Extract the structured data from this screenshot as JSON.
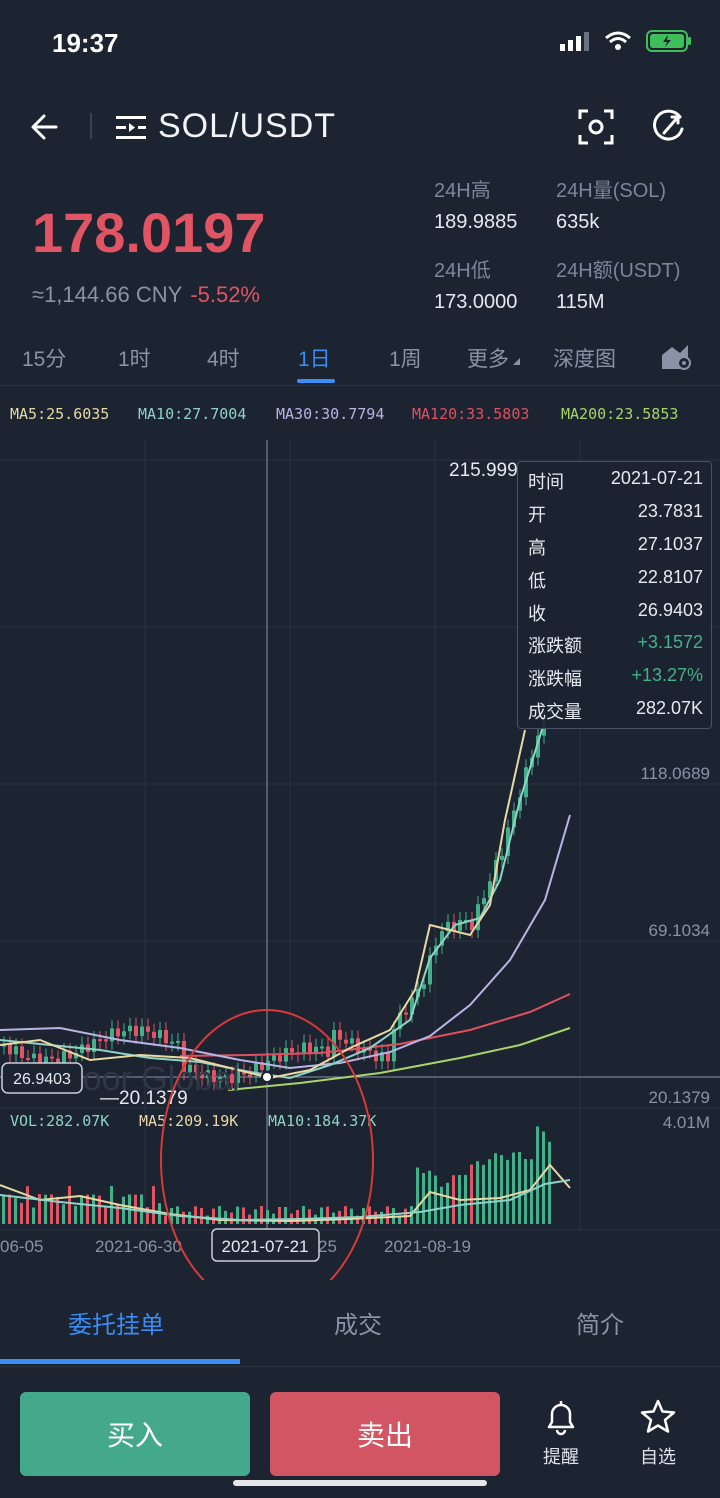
{
  "status": {
    "time": "19:37"
  },
  "header": {
    "pair": "SOL/USDT"
  },
  "ticker": {
    "price": "178.0197",
    "cny": "≈1,144.66 CNY",
    "change_pct": "-5.52%",
    "high_label": "24H高",
    "high": "189.9885",
    "vol_label": "24H量(SOL)",
    "vol": "635k",
    "low_label": "24H低",
    "low": "173.0000",
    "amt_label": "24H额(USDT)",
    "amt": "115M"
  },
  "tabs": [
    "15分",
    "1时",
    "4时",
    "1日",
    "1周",
    "更多",
    "深度图"
  ],
  "active_tab": "1日",
  "ma": {
    "ma5": "MA5:25.6035",
    "ma10": "MA10:27.7004",
    "ma30": "MA30:30.7794",
    "ma120": "MA120:33.5803",
    "ma200": "MA200:23.5853"
  },
  "chart": {
    "max_label": "215.999",
    "y_labels": [
      "118.0689",
      "69.1034",
      "20.1379"
    ],
    "current_marker": "26.9403",
    "min_label": "—20.1379",
    "vol_label": "VOL:282.07K",
    "vol_ma5": "MA5:209.19K",
    "vol_ma10": "MA10:184.37K",
    "vol_max": "4.01M",
    "x_labels": [
      "06-05",
      "2021-06-30",
      "25",
      "2021-08-19"
    ],
    "x_selected": "2021-07-21",
    "watermark": "Poor Global"
  },
  "chart_data": {
    "type": "line",
    "title": "",
    "series_note": "",
    "ylim": [
      20.1379,
      215.999
    ],
    "x_range": [
      "2021-06-05",
      "2021-09-05"
    ]
  },
  "tooltip": {
    "time_k": "时间",
    "time_v": "2021-07-21",
    "open_k": "开",
    "open_v": "23.7831",
    "high_k": "高",
    "high_v": "27.1037",
    "low_k": "低",
    "low_v": "22.8107",
    "close_k": "收",
    "close_v": "26.9403",
    "chg_k": "涨跌额",
    "chg_v": "+3.1572",
    "chgp_k": "涨跌幅",
    "chgp_v": "+13.27%",
    "vol_k": "成交量",
    "vol_v": "282.07K"
  },
  "bottom_tabs": [
    "委托挂单",
    "成交",
    "简介"
  ],
  "actions": {
    "buy": "买入",
    "sell": "卖出",
    "alert": "提醒",
    "favorite": "自选"
  },
  "colors": {
    "up": "#43b08a",
    "down": "#e05463",
    "accent": "#3b8cf5"
  }
}
